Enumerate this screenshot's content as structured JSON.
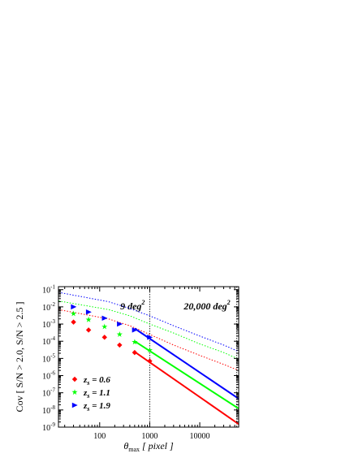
{
  "chart_data": {
    "type": "line",
    "title": "",
    "xlabel": {
      "symbol": "θ",
      "sub": "max",
      "text": " [ pixel ]"
    },
    "ylabel": "Cov [ S/N > 2.0, S/N > 2.5 ]",
    "x_scale": "log",
    "y_scale": "log",
    "xlim": [
      15,
      60000
    ],
    "ylim": [
      1e-09,
      0.15
    ],
    "x_ticks": [
      {
        "value": 100,
        "label": "100"
      },
      {
        "value": 1000,
        "label": "1000"
      },
      {
        "value": 10000,
        "label": "10000"
      }
    ],
    "y_ticks": [
      {
        "value": 1e-09,
        "base": "10",
        "exp": "-9"
      },
      {
        "value": 1e-08,
        "base": "10",
        "exp": "-8"
      },
      {
        "value": 1e-07,
        "base": "10",
        "exp": "-7"
      },
      {
        "value": 1e-06,
        "base": "10",
        "exp": "-6"
      },
      {
        "value": 1e-05,
        "base": "10",
        "exp": "-5"
      },
      {
        "value": 0.0001,
        "base": "10",
        "exp": "-4"
      },
      {
        "value": 0.001,
        "base": "10",
        "exp": "-3"
      },
      {
        "value": 0.01,
        "base": "10",
        "exp": "-2"
      },
      {
        "value": 0.1,
        "base": "10",
        "exp": "-1"
      }
    ],
    "grid": false,
    "legend_placement": "bottom-left",
    "vlines": [
      {
        "x": 1000,
        "label": "9 deg",
        "sup": "2"
      },
      {
        "x": 55000,
        "label": "20,000 deg",
        "sup": "2"
      }
    ],
    "series": [
      {
        "name": "z",
        "sub": "s",
        "value_label": " = 0.6",
        "color": "#ff0000",
        "marker": "diamond",
        "points": {
          "x": [
            30,
            60,
            125,
            250,
            500,
            1000
          ],
          "y": [
            0.0013,
            0.00045,
            0.00017,
            6e-05,
            2.2e-05,
            7e-06
          ]
        },
        "solid": {
          "x": [
            500,
            60000
          ],
          "y": [
            2.4e-05,
            1.5e-09
          ]
        },
        "dotted": {
          "x": [
            15,
            150,
            400,
            1000,
            3000,
            10000,
            30000,
            60000
          ],
          "y": [
            0.007,
            0.002,
            0.0008,
            0.00025,
            6e-05,
            1.5e-05,
            4.5e-06,
            2e-06
          ]
        }
      },
      {
        "name": "z",
        "sub": "s",
        "value_label": " = 1.1",
        "color": "#00ff00",
        "marker": "star",
        "points": {
          "x": [
            30,
            60,
            125,
            250,
            500,
            1000
          ],
          "y": [
            0.004,
            0.0018,
            0.0007,
            0.00025,
            9e-05,
            3e-05
          ]
        },
        "solid": {
          "x": [
            500,
            60000
          ],
          "y": [
            0.0001,
            1.2e-08
          ]
        },
        "dotted": {
          "x": [
            15,
            150,
            400,
            1000,
            3000,
            10000,
            30000,
            60000
          ],
          "y": [
            0.022,
            0.007,
            0.003,
            0.001,
            0.0003,
            7e-05,
            2.2e-05,
            9e-06
          ]
        }
      },
      {
        "name": "z",
        "sub": "s",
        "value_label": " = 1.9",
        "color": "#0000ff",
        "marker": "triangle-right",
        "points": {
          "x": [
            30,
            60,
            125,
            250,
            500,
            1000
          ],
          "y": [
            0.01,
            0.005,
            0.0022,
            0.001,
            0.00045,
            0.00017
          ]
        },
        "solid": {
          "x": [
            500,
            60000
          ],
          "y": [
            0.00055,
            4.5e-08
          ]
        },
        "dotted": {
          "x": [
            15,
            150,
            400,
            1000,
            3000,
            10000,
            30000,
            60000
          ],
          "y": [
            0.07,
            0.02,
            0.008,
            0.003,
            0.0008,
            0.0002,
            6e-05,
            2.5e-05
          ]
        }
      }
    ]
  }
}
